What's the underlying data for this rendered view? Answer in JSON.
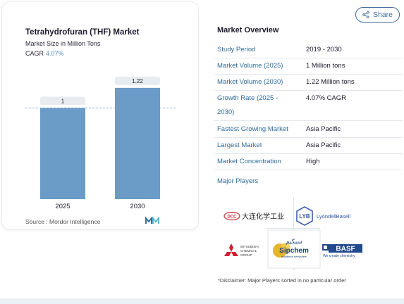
{
  "share": {
    "label": "Share",
    "icon": "share-icon"
  },
  "chart": {
    "title": "Tetrahydrofuran (THF) Market",
    "subtitle": "Market Size in Million Tons",
    "cagr_label": "CAGR",
    "cagr_value": "4.07%",
    "source": "Source :  Mordor Intelligence",
    "logo_icon": "mordor-logo-icon"
  },
  "chart_data": {
    "type": "bar",
    "categories": [
      "2025",
      "2030"
    ],
    "values": [
      1,
      1.22
    ],
    "value_labels": [
      "1",
      "1.22"
    ],
    "ylim": [
      0,
      1.35
    ],
    "reference_line": 1,
    "bar_color": "#6a9cc7",
    "bar_color_top": "#5b8ab8",
    "grid": false
  },
  "overview": {
    "title": "Market Overview",
    "rows": [
      {
        "label": "Study Period",
        "value": "2019 - 2030"
      },
      {
        "label": "Market Volume (2025)",
        "value": "1 Million tons"
      },
      {
        "label": "Market Volume (2030)",
        "value": "1.22 Million tons"
      },
      {
        "label": "Growth Rate (2025 - 2030)",
        "value": "4.07% CAGR"
      },
      {
        "label": "Fastest Growing Market",
        "value": "Asia Pacific"
      },
      {
        "label": "Largest Market",
        "value": "Asia Pacific"
      },
      {
        "label": "Market Concentration",
        "value": "High"
      }
    ],
    "major_players_label": "Major Players"
  },
  "players": {
    "dcc_text": "DCC",
    "dcc_chinese": "大连化学工业",
    "lyb_text": "LYB",
    "lyondell_text": "LyondellBasell",
    "mitsubishi_lines": [
      "MITSUBISHI",
      "CHEMICAL",
      "GROUP"
    ],
    "sipchem_arabic": "سبكيم",
    "sipchem_text": "Sipchem",
    "sipchem_tagline": "excellence everywhere",
    "basf_text": "BASF",
    "basf_tagline": "We create chemistry"
  },
  "disclaimer": "*Disclaimer: Major Players sorted in no particular order"
}
